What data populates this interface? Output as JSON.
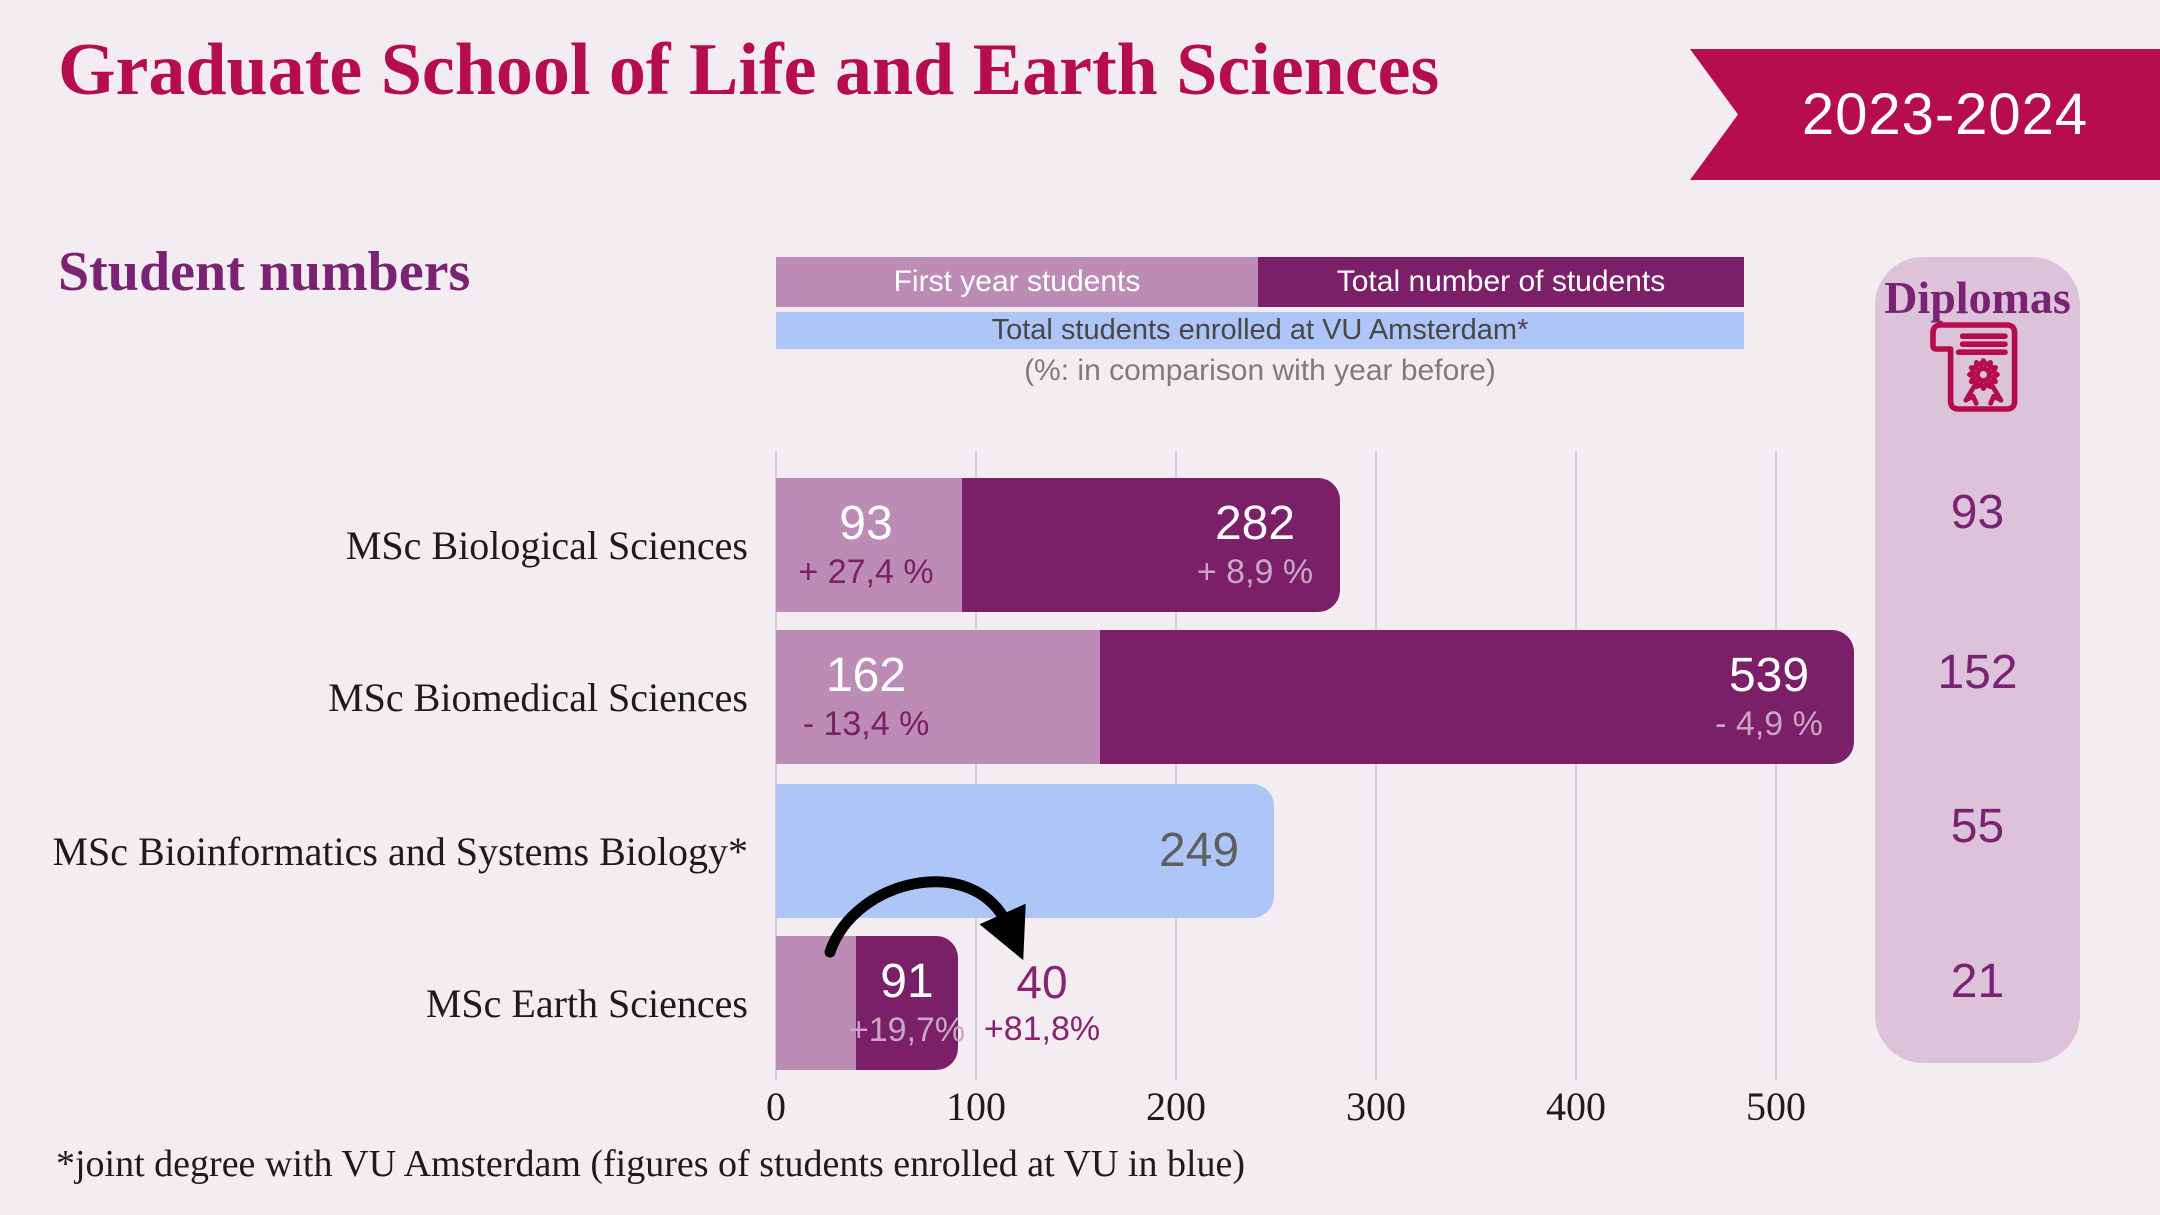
{
  "header": {
    "title": "Graduate School of Life and Earth Sciences",
    "year_badge": "2023-2024"
  },
  "section": {
    "title": "Student numbers"
  },
  "legend": {
    "first_year": {
      "label": "First year students",
      "color": "#bd8cb6"
    },
    "total": {
      "label": "Total number of students",
      "color": "#7a1f68"
    },
    "vu": {
      "label": "Total students enrolled at VU Amsterdam*",
      "color": "#aec5f7"
    },
    "note": "(%: in comparison with year before)"
  },
  "colors": {
    "background": "#f3edf2",
    "crimson": "#b60d4c",
    "purple_dark": "#7a1f68",
    "mauve_light": "#bd8cb6",
    "blue_light": "#aec5f7",
    "panel_bg": "#dcc3da",
    "heading_purple": "#7b2373",
    "change_on_dark": "#c9a7c4",
    "outside_purple": "#8a2370",
    "vu_text": "#5f5f5f",
    "gridline": "#d8d0d8"
  },
  "chart_data": {
    "type": "bar",
    "orientation": "horizontal",
    "xlim": [
      0,
      560
    ],
    "xticks": [
      0,
      100,
      200,
      300,
      400,
      500
    ],
    "grid": true,
    "categories": [
      "MSc Biological Sciences",
      "MSc Biomedical Sciences",
      "MSc Bioinformatics and Systems Biology*",
      "MSc Earth Sciences"
    ],
    "rows": [
      {
        "label": "MSc Biological Sciences",
        "first_year": {
          "value": 93,
          "change": "+ 27,4 %"
        },
        "total": {
          "value": 282,
          "change": "+ 8,9 %"
        },
        "vu_enrolled": null,
        "first_year_label_outside": false
      },
      {
        "label": "MSc Biomedical Sciences",
        "first_year": {
          "value": 162,
          "change": "- 13,4 %"
        },
        "total": {
          "value": 539,
          "change": "- 4,9 %"
        },
        "vu_enrolled": null,
        "first_year_label_outside": false
      },
      {
        "label": "MSc Bioinformatics and Systems Biology*",
        "first_year": null,
        "total": null,
        "vu_enrolled": {
          "value": 249
        },
        "first_year_label_outside": false
      },
      {
        "label": "MSc Earth Sciences",
        "first_year": {
          "value": 40,
          "change": "+81,8%"
        },
        "total": {
          "value": 91,
          "change": "+19,7%"
        },
        "vu_enrolled": null,
        "first_year_label_outside": true
      }
    ]
  },
  "diplomas": {
    "title": "Diplomas",
    "icon": "diploma-certificate-icon",
    "values": [
      93,
      152,
      55,
      21
    ]
  },
  "footnote": "*joint degree with VU Amsterdam (figures of students enrolled at VU in blue)"
}
